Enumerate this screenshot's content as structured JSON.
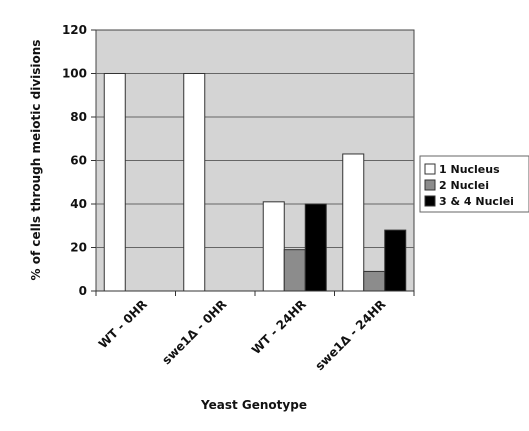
{
  "chart_data": {
    "type": "bar",
    "title": "",
    "xlabel": "Yeast Genotype",
    "ylabel": "% of cells through meiotic divisions",
    "ylim": [
      0,
      120
    ],
    "yticks": [
      0,
      20,
      40,
      60,
      80,
      100,
      120
    ],
    "categories": [
      "WT - 0HR",
      "swe1Δ - 0HR",
      "WT - 24HR",
      "swe1Δ - 24HR"
    ],
    "series": [
      {
        "name": "1 Nucleus",
        "color": "#ffffff",
        "values": [
          100,
          100,
          41,
          63
        ]
      },
      {
        "name": "2 Nuclei",
        "color": "#8c8c8c",
        "values": [
          0,
          0,
          19,
          9
        ]
      },
      {
        "name": "3 & 4 Nuclei",
        "color": "#000000",
        "values": [
          0,
          0,
          40,
          28
        ]
      }
    ],
    "plot_background": "#d4d4d4",
    "grid": true,
    "legend_position": "right"
  }
}
